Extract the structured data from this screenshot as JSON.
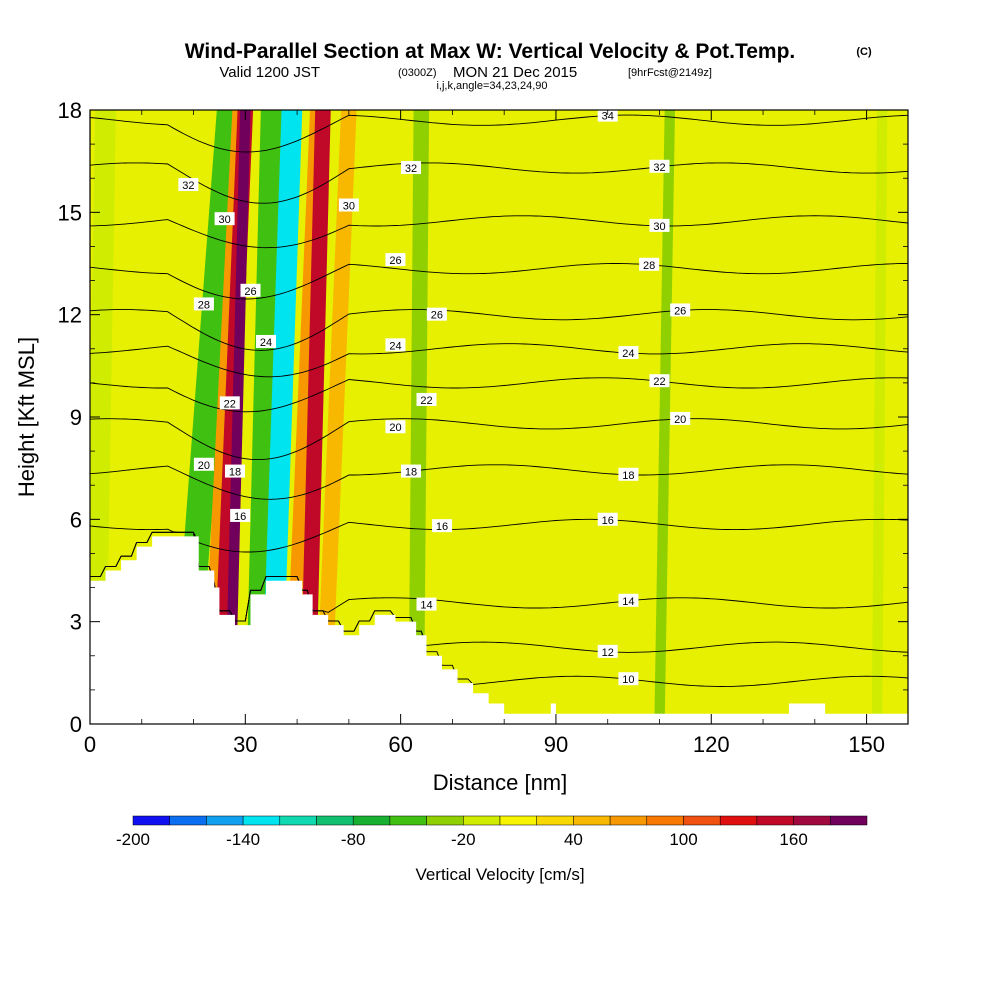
{
  "title": {
    "main": "Wind-Parallel Section at Max W: Vertical Velocity & Pot.Temp.",
    "corner": "(C)",
    "valid_prefix": "Valid 1200 JST",
    "valid_utc": "(0300Z)",
    "valid_date": "MON 21 Dec 2015",
    "forecast": "[9hrFcst@2149z]",
    "section": "i,j,k,angle=34,23,24,90"
  },
  "chart_data": {
    "type": "heatmap",
    "xlabel": "Distance [nm]",
    "ylabel": "Height [Kft MSL]",
    "xlim": [
      0,
      158
    ],
    "ylim": [
      0,
      18
    ],
    "x_ticks": [
      0,
      30,
      60,
      90,
      120,
      150
    ],
    "y_ticks": [
      0,
      3,
      6,
      9,
      12,
      15,
      18
    ],
    "colorbar": {
      "title": "Vertical Velocity [cm/s]",
      "levels": [
        -200,
        -180,
        -160,
        -140,
        -120,
        -100,
        -80,
        -60,
        -40,
        -20,
        0,
        20,
        40,
        60,
        80,
        100,
        120,
        140,
        160,
        180,
        200
      ],
      "labeled": [
        -200,
        -140,
        -80,
        -20,
        40,
        100,
        160
      ],
      "colors": [
        "#1010f0",
        "#0a6ef0",
        "#10a0f0",
        "#00e4f0",
        "#10d8b0",
        "#10c070",
        "#18b030",
        "#40c010",
        "#90d000",
        "#d0ec00",
        "#f8f400",
        "#f8d800",
        "#f8b800",
        "#f89800",
        "#f87800",
        "#f05010",
        "#e01010",
        "#c00828",
        "#a00840",
        "#70005c"
      ]
    },
    "vertical_velocity_bands": [
      {
        "x_base": 1,
        "x_top": 3,
        "width": 4,
        "w": -20
      },
      {
        "x_base": 18,
        "x_top": 27,
        "width": 5,
        "w": -60
      },
      {
        "x_base": 23,
        "x_top": 29,
        "width": 3,
        "w": 60
      },
      {
        "x_base": 25,
        "x_top": 30,
        "width": 3,
        "w": 140
      },
      {
        "x_base": 27,
        "x_top": 30,
        "width": 2,
        "w": 190
      },
      {
        "x_base": 33,
        "x_top": 36,
        "width": 6,
        "w": -60
      },
      {
        "x_base": 35,
        "x_top": 39,
        "width": 4,
        "w": -130
      },
      {
        "x_base": 39,
        "x_top": 44,
        "width": 3,
        "w": 60
      },
      {
        "x_base": 42,
        "x_top": 45,
        "width": 3,
        "w": 140
      },
      {
        "x_base": 45,
        "x_top": 50,
        "width": 3,
        "w": 40
      },
      {
        "x_base": 63,
        "x_top": 64,
        "width": 3,
        "w": -40
      },
      {
        "x_base": 110,
        "x_top": 112,
        "width": 2,
        "w": -40
      },
      {
        "x_base": 152,
        "x_top": 153,
        "width": 2,
        "w": -20
      }
    ],
    "terrain": {
      "x": [
        0,
        3,
        3,
        6,
        6,
        9,
        9,
        12,
        12,
        21,
        21,
        24,
        24,
        25,
        25,
        28,
        28,
        31,
        31,
        34,
        34,
        41,
        41,
        43,
        43,
        46,
        46,
        49,
        49,
        52,
        52,
        55,
        55,
        59,
        59,
        63,
        63,
        65,
        65,
        68,
        68,
        71,
        71,
        74,
        74,
        77,
        77,
        80,
        80,
        89,
        89,
        90,
        90,
        135,
        135,
        142,
        142,
        158
      ],
      "y": [
        4.2,
        4.2,
        4.5,
        4.5,
        4.8,
        4.8,
        5.2,
        5.2,
        5.5,
        5.5,
        4.5,
        4.5,
        4.0,
        4.0,
        3.2,
        3.2,
        2.9,
        2.9,
        3.8,
        3.8,
        4.2,
        4.2,
        3.8,
        3.8,
        3.2,
        3.2,
        2.9,
        2.9,
        2.6,
        2.6,
        2.9,
        2.9,
        3.2,
        3.2,
        3.0,
        3.0,
        2.6,
        2.6,
        2.0,
        2.0,
        1.6,
        1.6,
        1.2,
        1.2,
        0.9,
        0.9,
        0.6,
        0.6,
        0.3,
        0.3,
        0.6,
        0.6,
        0.3,
        0.3,
        0.6,
        0.6,
        0.3,
        0.3
      ]
    },
    "theta_contours": [
      {
        "level": 10,
        "base": 1.25,
        "label_x": 104
      },
      {
        "level": 12,
        "base": 2.25,
        "label_x": 100
      },
      {
        "level": 14,
        "base": 3.55,
        "label_x": 104
      },
      {
        "level": 16,
        "base": 5.85,
        "label_x": 100
      },
      {
        "level": 18,
        "base": 7.45,
        "label_x": 104
      },
      {
        "level": 20,
        "base": 8.8,
        "label_x": 114
      },
      {
        "level": 22,
        "base": 10.0,
        "label_x": 110
      },
      {
        "level": 24,
        "base": 11.0,
        "label_x": 104
      },
      {
        "level": 26,
        "base": 12.0,
        "label_x": 114
      },
      {
        "level": 28,
        "base": 13.35,
        "label_x": 108
      },
      {
        "level": 30,
        "base": 14.75,
        "label_x": 110
      },
      {
        "level": 32,
        "base": 16.3,
        "label_x": 110
      },
      {
        "level": 34,
        "base": 17.7,
        "label_x": 100
      }
    ],
    "theta_labels_extra": [
      {
        "text": "32",
        "x": 62,
        "y": 16.3
      },
      {
        "text": "30",
        "x": 50,
        "y": 15.2
      },
      {
        "text": "26",
        "x": 59,
        "y": 13.6
      },
      {
        "text": "26",
        "x": 67,
        "y": 12.0
      },
      {
        "text": "24",
        "x": 59,
        "y": 11.1
      },
      {
        "text": "22",
        "x": 65,
        "y": 9.5
      },
      {
        "text": "20",
        "x": 59,
        "y": 8.7
      },
      {
        "text": "18",
        "x": 62,
        "y": 7.4
      },
      {
        "text": "16",
        "x": 68,
        "y": 5.8
      },
      {
        "text": "14",
        "x": 65,
        "y": 3.5
      },
      {
        "text": "32",
        "x": 19,
        "y": 15.8
      },
      {
        "text": "30",
        "x": 26,
        "y": 14.8
      },
      {
        "text": "28",
        "x": 22,
        "y": 12.3
      },
      {
        "text": "26",
        "x": 31,
        "y": 12.7
      },
      {
        "text": "24",
        "x": 34,
        "y": 11.2
      },
      {
        "text": "22",
        "x": 27,
        "y": 9.4
      },
      {
        "text": "20",
        "x": 22,
        "y": 7.6
      },
      {
        "text": "18",
        "x": 28,
        "y": 7.4
      },
      {
        "text": "16",
        "x": 29,
        "y": 6.1
      }
    ]
  }
}
